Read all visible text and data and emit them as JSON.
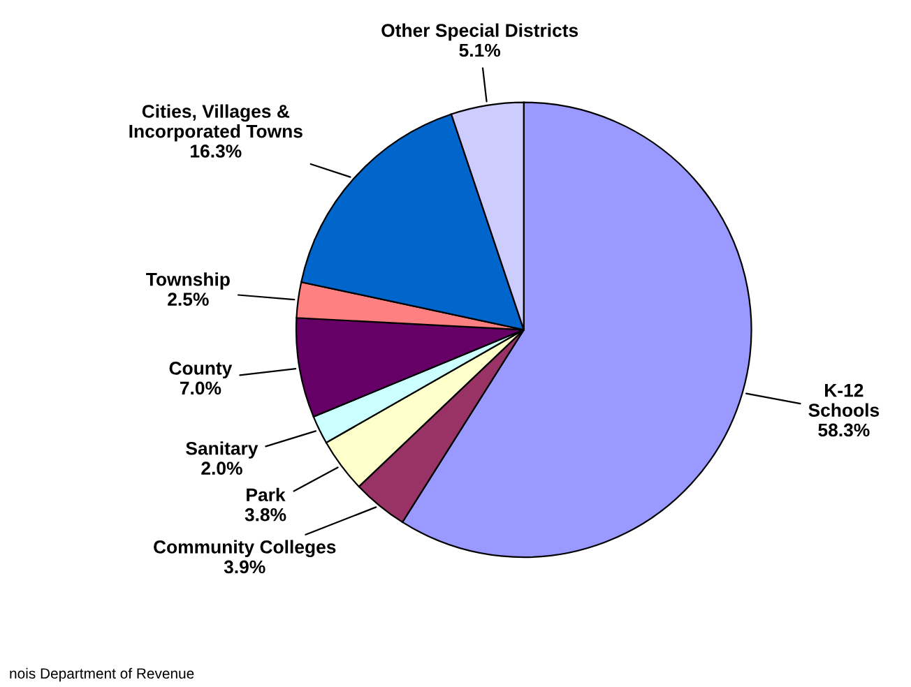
{
  "chart_data": {
    "type": "pie",
    "categories": [
      "K-12\nSchools",
      "Community Colleges",
      "Park",
      "Sanitary",
      "County",
      "Township",
      "Cities, Villages &\nIncorporated Towns",
      "Other Special Districts"
    ],
    "values": [
      58.3,
      3.9,
      3.8,
      2.0,
      7.0,
      2.5,
      16.3,
      5.1
    ],
    "value_labels": [
      "58.3%",
      "3.9%",
      "3.8%",
      "2.0%",
      "7.0%",
      "2.5%",
      "16.3%",
      "5.1%"
    ],
    "colors": [
      "#9999ff",
      "#993366",
      "#ffffcc",
      "#ccffff",
      "#660066",
      "#ff8080",
      "#0066cc",
      "#ccccff"
    ],
    "legend": false,
    "annotations": [
      "nois Department of Revenue"
    ]
  }
}
